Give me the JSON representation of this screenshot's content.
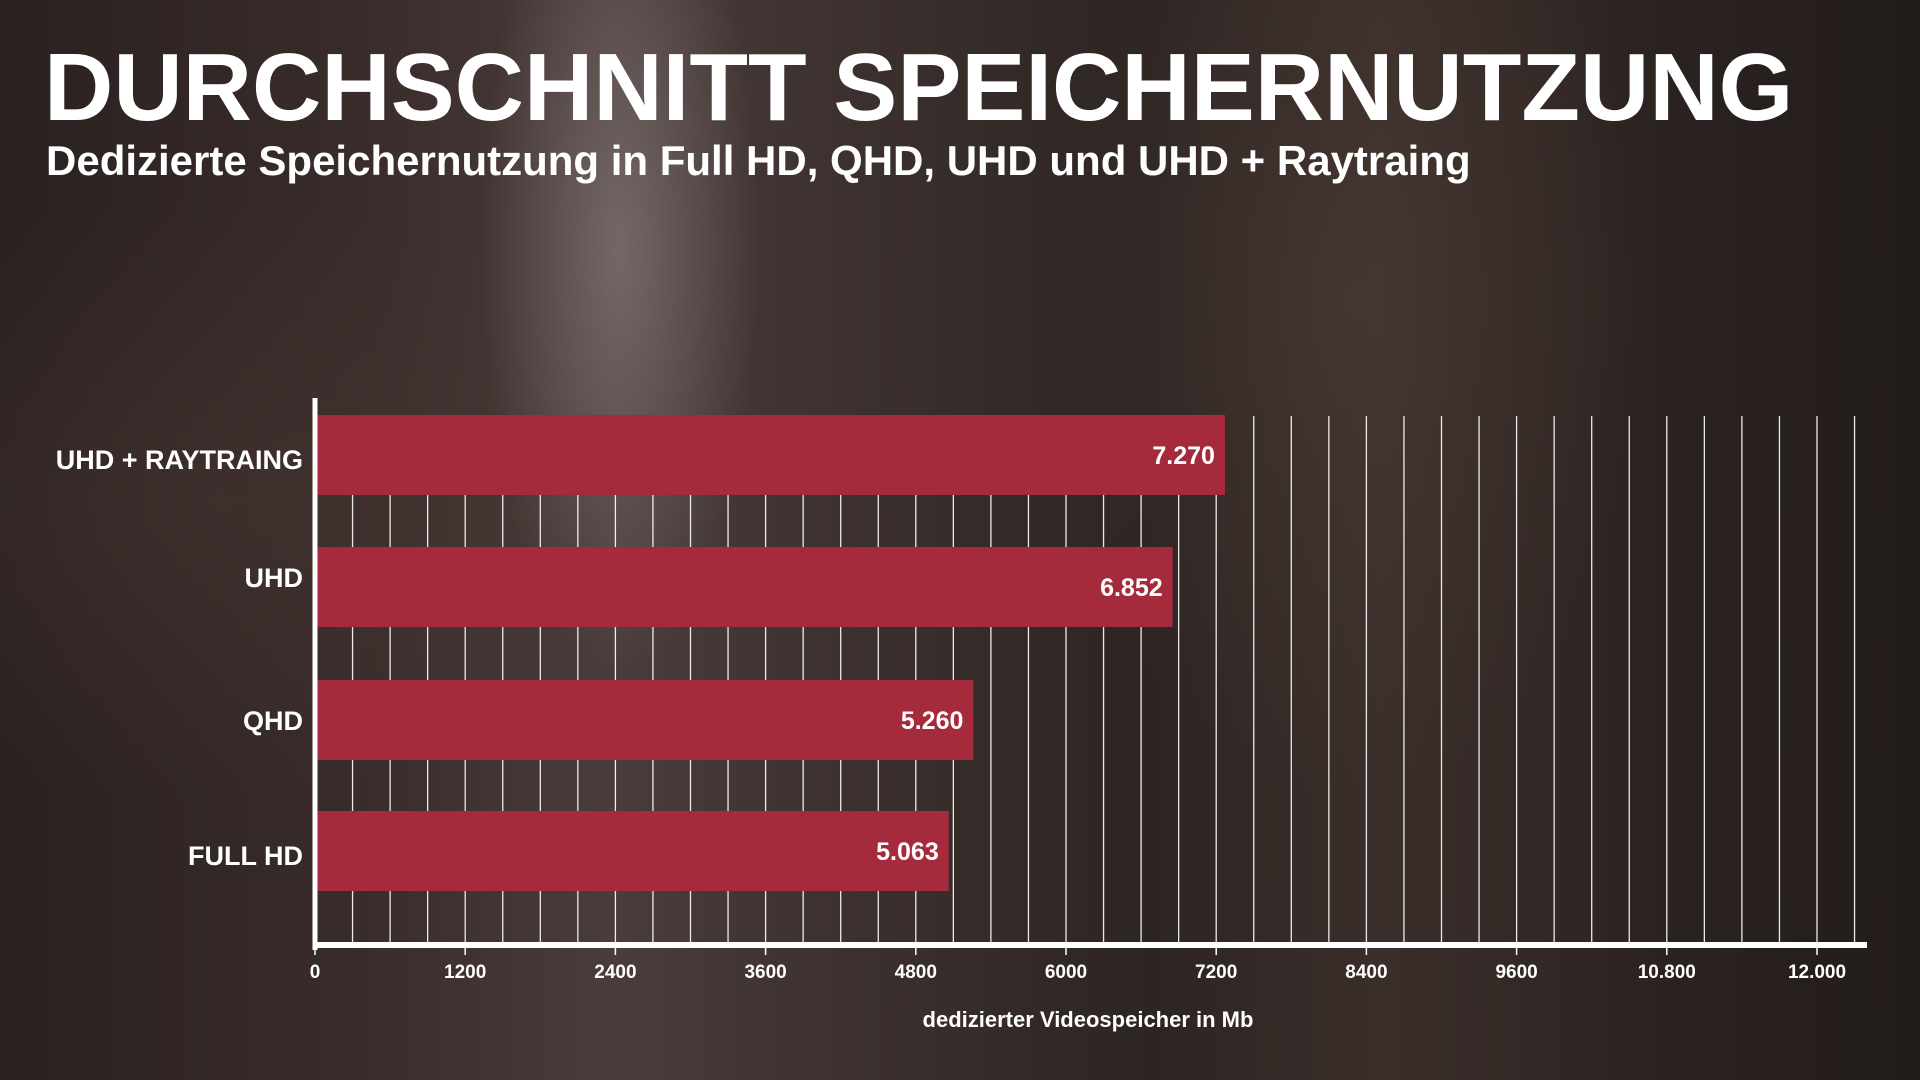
{
  "chart_data": {
    "type": "bar",
    "orientation": "horizontal",
    "title": "DURCHSCHNITT SPEICHERNUTZUNG",
    "subtitle": "Dedizierte Speichernutzung in Full HD, QHD, UHD und UHD + Raytraing",
    "categories": [
      "UHD + RAYTRAING",
      "UHD",
      "QHD",
      "FULL HD"
    ],
    "values": [
      7270,
      6852,
      5260,
      5063
    ],
    "value_labels": [
      "7.270",
      "6.852",
      "5.260",
      "5.063"
    ],
    "xlabel": "dedizierter Videospeicher in Mb",
    "ylabel": "",
    "xlim": [
      0,
      12300
    ],
    "xticks": [
      0,
      1200,
      2400,
      3600,
      4800,
      6000,
      7200,
      8400,
      9600,
      10800,
      12000
    ],
    "xtick_labels": [
      "0",
      "1200",
      "2400",
      "3600",
      "4800",
      "6000",
      "7200",
      "8400",
      "9600",
      "10.800",
      "12.000"
    ],
    "grid": true,
    "grid_step": 300,
    "bar_color": "#a52a3b",
    "text_color": "#ffffff"
  }
}
